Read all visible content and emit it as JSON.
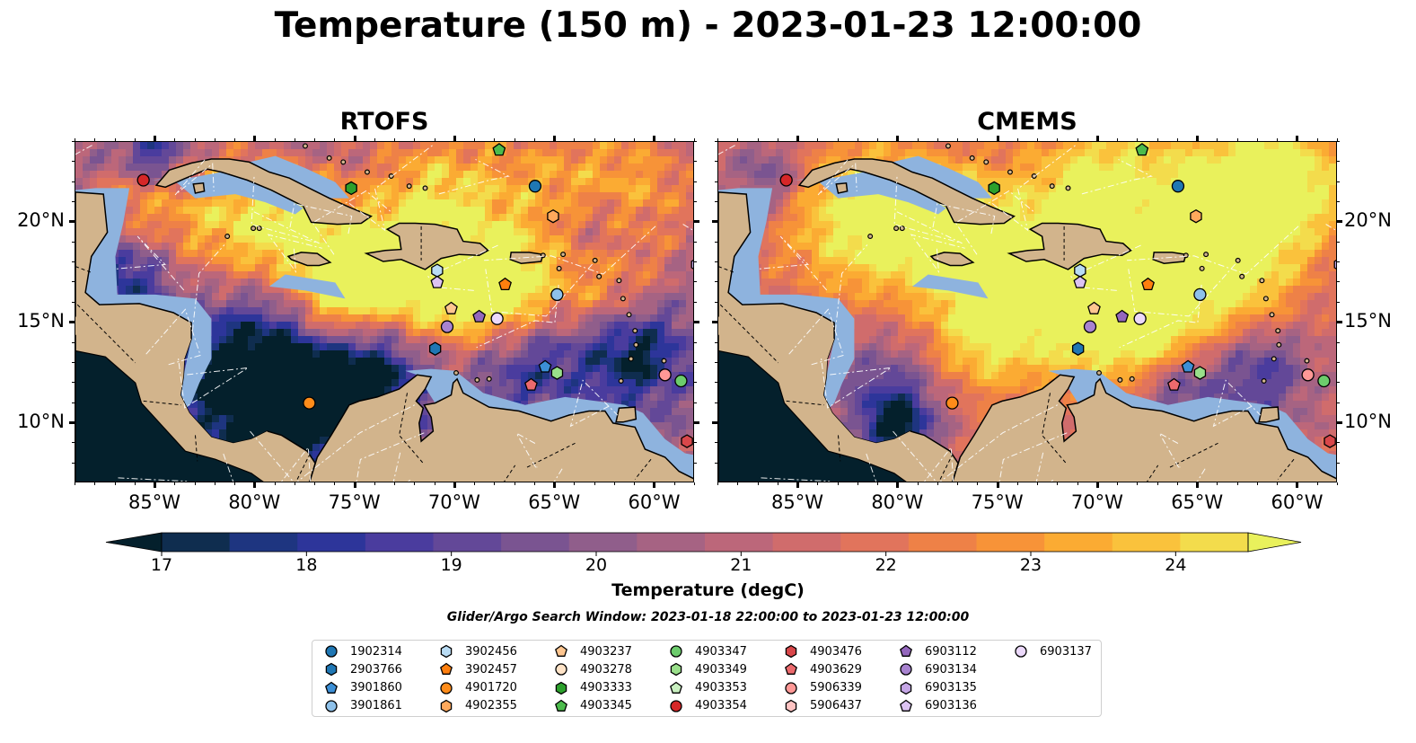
{
  "figure": {
    "title": "Temperature (150 m) - 2023-01-23 12:00:00",
    "panels": [
      {
        "title": "RTOFS",
        "variant": "rtofs"
      },
      {
        "title": "CMEMS",
        "variant": "cmems"
      }
    ],
    "x_tick_labels": [
      "85°W",
      "80°W",
      "75°W",
      "70°W",
      "65°W",
      "60°W"
    ],
    "y_tick_labels": [
      "20°N",
      "15°N",
      "10°N"
    ],
    "x_ticks_deg": [
      -85,
      -80,
      -75,
      -70,
      -65,
      -60
    ],
    "y_ticks_deg": [
      20,
      15,
      10
    ],
    "lon_range": [
      -89,
      -58
    ],
    "lat_range": [
      7,
      24
    ]
  },
  "colorbar": {
    "label": "Temperature (degC)",
    "min": 17.0,
    "max": 24.5,
    "step": 0.5,
    "extend": "both",
    "tick_values": [
      17,
      18,
      19,
      20,
      21,
      22,
      23,
      24
    ],
    "tick_labels": [
      "17",
      "18",
      "19",
      "20",
      "21",
      "22",
      "23",
      "24"
    ],
    "colors": [
      "#04202c",
      "#0f2d4f",
      "#1e3580",
      "#2d359a",
      "#4a3c9e",
      "#634898",
      "#7a5491",
      "#905e8b",
      "#a66383",
      "#bc677a",
      "#d06c6c",
      "#e1745c",
      "#ee8147",
      "#f79338",
      "#fbab33",
      "#fac23c",
      "#f3dc4c",
      "#e9f15c"
    ]
  },
  "search_window": "Glider/Argo Search Window: 2023-01-18 22:00:00 to 2023-01-23 12:00:00",
  "colors": {
    "land": "#d2b48c",
    "shallow_water": "#8eb3de",
    "border": "#000000",
    "frame": "#000000"
  },
  "legend": [
    {
      "label": "1902314",
      "marker": "circle",
      "color": "#1f77b4"
    },
    {
      "label": "2903766",
      "marker": "hexagon",
      "color": "#1f77b4"
    },
    {
      "label": "3901860",
      "marker": "pentagon",
      "color": "#3c8fd6"
    },
    {
      "label": "3901861",
      "marker": "circle",
      "color": "#8ec1ea"
    },
    {
      "label": "3902456",
      "marker": "hexagon",
      "color": "#b9dcf4"
    },
    {
      "label": "3902457",
      "marker": "pentagon",
      "color": "#ff7f0e"
    },
    {
      "label": "4901720",
      "marker": "circle",
      "color": "#ff8c1a"
    },
    {
      "label": "4902355",
      "marker": "hexagon",
      "color": "#ffa95c"
    },
    {
      "label": "4903237",
      "marker": "pentagon",
      "color": "#ffc690"
    },
    {
      "label": "4903278",
      "marker": "circle",
      "color": "#ffe3c7"
    },
    {
      "label": "4903333",
      "marker": "hexagon",
      "color": "#2ca02c"
    },
    {
      "label": "4903345",
      "marker": "pentagon",
      "color": "#4cbb4c"
    },
    {
      "label": "4903347",
      "marker": "circle",
      "color": "#6ccc6c"
    },
    {
      "label": "4903349",
      "marker": "hexagon",
      "color": "#99df8a"
    },
    {
      "label": "4903353",
      "marker": "pentagon",
      "color": "#c9f0c0"
    },
    {
      "label": "4903354",
      "marker": "circle",
      "color": "#d62728"
    },
    {
      "label": "4903476",
      "marker": "hexagon",
      "color": "#d9474a"
    },
    {
      "label": "4903629",
      "marker": "pentagon",
      "color": "#ec6a6d"
    },
    {
      "label": "5906339",
      "marker": "circle",
      "color": "#ff9896"
    },
    {
      "label": "5906437",
      "marker": "hexagon",
      "color": "#ffc4c3"
    },
    {
      "label": "6903112",
      "marker": "pentagon",
      "color": "#9467bd"
    },
    {
      "label": "6903134",
      "marker": "circle",
      "color": "#a883d0"
    },
    {
      "label": "6903135",
      "marker": "hexagon",
      "color": "#c5a6e6"
    },
    {
      "label": "6903136",
      "marker": "pentagon",
      "color": "#dcc3f2"
    },
    {
      "label": "6903137",
      "marker": "circle",
      "color": "#ecd9fb"
    }
  ],
  "floats": [
    {
      "id": "4903354",
      "lon": -85.6,
      "lat": 22.1
    },
    {
      "id": "4903333",
      "lon": -75.2,
      "lat": 21.7
    },
    {
      "id": "4903345",
      "lon": -67.8,
      "lat": 23.6
    },
    {
      "id": "1902314",
      "lon": -66.0,
      "lat": 21.8
    },
    {
      "id": "4902355",
      "lon": -65.1,
      "lat": 20.3
    },
    {
      "id": "6903135",
      "lon": -57.9,
      "lat": 17.9
    },
    {
      "id": "3902456",
      "lon": -70.9,
      "lat": 17.6
    },
    {
      "id": "6903136",
      "lon": -70.9,
      "lat": 17.0
    },
    {
      "id": "3902457",
      "lon": -67.5,
      "lat": 16.9
    },
    {
      "id": "3901861",
      "lon": -64.9,
      "lat": 16.4
    },
    {
      "id": "4903237",
      "lon": -70.2,
      "lat": 15.7
    },
    {
      "id": "6903112",
      "lon": -68.8,
      "lat": 15.3
    },
    {
      "id": "6903137",
      "lon": -67.9,
      "lat": 15.2
    },
    {
      "id": "6903134",
      "lon": -70.4,
      "lat": 14.8
    },
    {
      "id": "2903766",
      "lon": -71.0,
      "lat": 13.7
    },
    {
      "id": "3901860",
      "lon": -65.5,
      "lat": 12.8
    },
    {
      "id": "4903349",
      "lon": -64.9,
      "lat": 12.5
    },
    {
      "id": "4903629",
      "lon": -66.2,
      "lat": 11.9
    },
    {
      "id": "5906339",
      "lon": -59.5,
      "lat": 12.4
    },
    {
      "id": "4903347",
      "lon": -58.7,
      "lat": 12.1
    },
    {
      "id": "4901720",
      "lon": -77.3,
      "lat": 11.0
    },
    {
      "id": "4903476",
      "lon": -58.4,
      "lat": 9.1
    }
  ]
}
